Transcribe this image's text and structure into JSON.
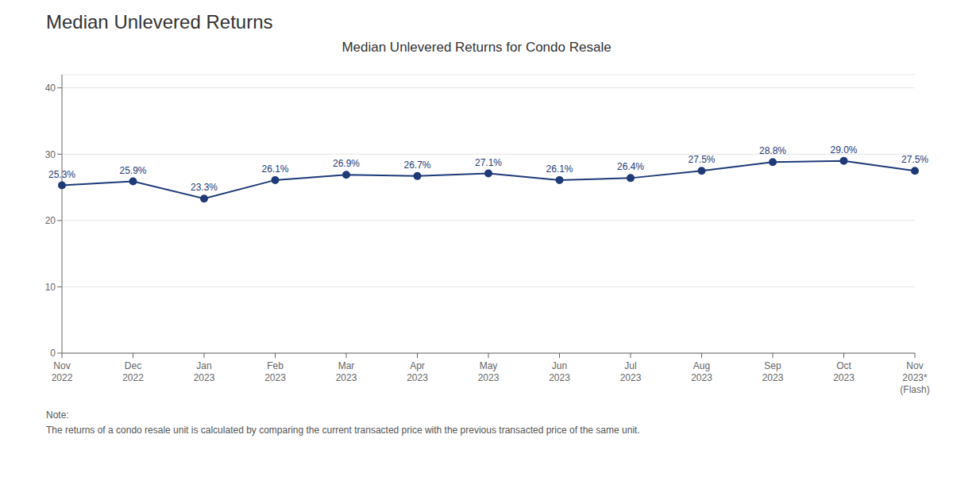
{
  "chart_data": {
    "type": "line",
    "title": "Median Unlevered Returns",
    "subtitle": "Median Unlevered Returns for Condo Resale",
    "categories": [
      "Nov\n2022",
      "Dec\n2022",
      "Jan\n2023",
      "Feb\n2023",
      "Mar\n2023",
      "Apr\n2023",
      "May\n2023",
      "Jun\n2023",
      "Jul\n2023",
      "Aug\n2023",
      "Sep\n2023",
      "Oct\n2023",
      "Nov\n2023*\n(Flash)"
    ],
    "values": [
      25.3,
      25.9,
      23.3,
      26.1,
      26.9,
      26.7,
      27.1,
      26.1,
      26.4,
      27.5,
      28.8,
      29.0,
      27.5
    ],
    "value_labels": [
      "25.3%",
      "25.9%",
      "23.3%",
      "26.1%",
      "26.9%",
      "26.7%",
      "27.1%",
      "26.1%",
      "26.4%",
      "27.5%",
      "28.8%",
      "29.0%",
      "27.5%"
    ],
    "data_labels": true,
    "color": "#1e3a78",
    "marker": "circle",
    "ylim": [
      0,
      42
    ],
    "yticks": [
      0,
      10,
      20,
      30,
      40
    ],
    "grid": true,
    "annotations": [
      "Note:\nThe returns of a condo resale unit is calculated by comparing the current transacted price with the previous transacted price of the same unit."
    ]
  }
}
